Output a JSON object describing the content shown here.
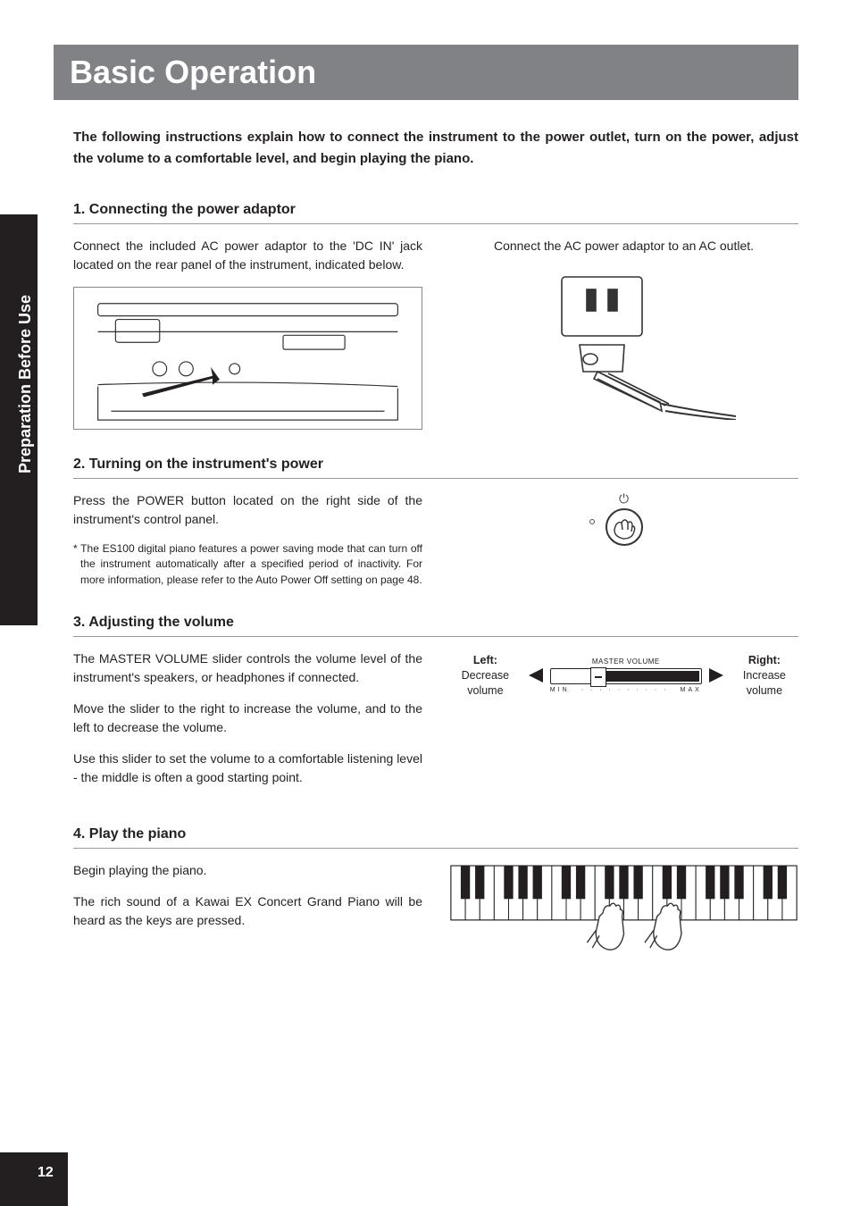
{
  "side_tab": "Preparation Before Use",
  "title": "Basic Operation",
  "intro": "The following instructions explain how to connect the instrument to the power outlet, turn on the power, adjust the volume to a comfortable level, and begin playing the piano.",
  "sections": {
    "s1": {
      "heading": "1. Connecting the power adaptor",
      "left": "Connect the included AC power adaptor to the 'DC IN' jack located on the rear panel of the instrument, indicated below.",
      "right": "Connect the AC power adaptor to an AC outlet."
    },
    "s2": {
      "heading": "2. Turning on the instrument's power",
      "left": "Press the POWER button located on the right side of the instrument's control panel.",
      "footnote": "* The ES100 digital piano features a power saving mode that can turn off the instrument automatically after a specified period of inactivity. For more information, please refer to the Auto Power Off setting on page 48."
    },
    "s3": {
      "heading": "3. Adjusting the volume",
      "p1": "The MASTER VOLUME slider controls the volume level of the instrument's speakers, or headphones if connected.",
      "p2": "Move the slider to the right to increase the volume, and to the left to decrease the volume.",
      "p3": "Use this slider to set the volume to a comfortable listening level - the middle is often a good starting point.",
      "vol_label": "MASTER VOLUME",
      "vol_min": "MIN",
      "vol_max": "MAX",
      "left_label_bold": "Left:",
      "left_label": "Decrease volume",
      "right_label_bold": "Right:",
      "right_label": "Increase volume"
    },
    "s4": {
      "heading": "4. Play the piano",
      "p1": "Begin playing the piano.",
      "p2": "The rich sound of a Kawai EX Concert Grand Piano will be heard as the keys are pressed."
    }
  },
  "page_number": "12",
  "colors": {
    "title_bg": "#808285",
    "text": "#231f20",
    "side_bg": "#231f20"
  }
}
